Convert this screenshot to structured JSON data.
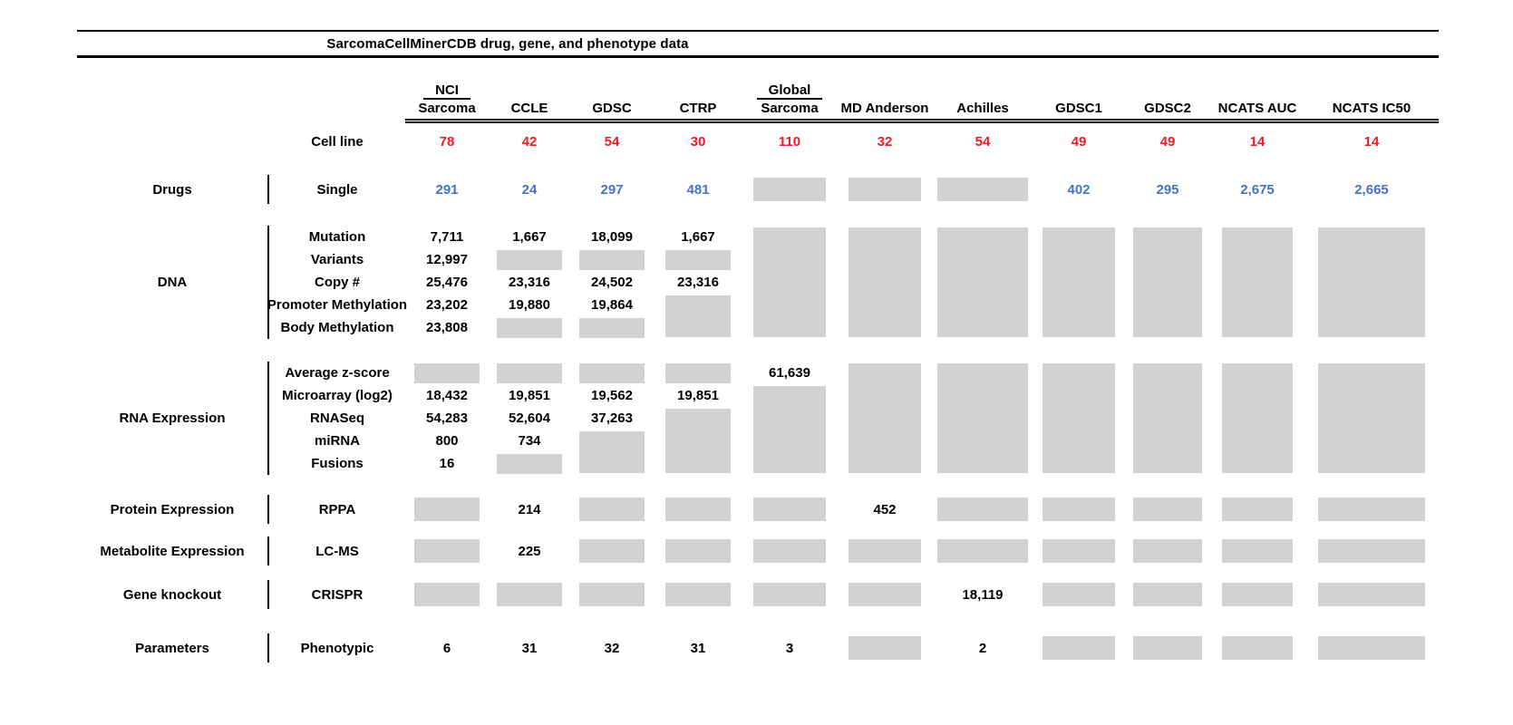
{
  "title": "SarcomaCellMinerCDB drug, gene, and phenotype data",
  "colors": {
    "red": "#ed1c24",
    "blue": "#4472c4",
    "box": "#d2d2d2"
  },
  "cell_line_label": "Cell line",
  "columns": [
    {
      "top": "NCI",
      "label": "Sarcoma",
      "count": "78"
    },
    {
      "label": "CCLE",
      "count": "42"
    },
    {
      "label": "GDSC",
      "count": "54"
    },
    {
      "label": "CTRP",
      "count": "30"
    },
    {
      "top": "Global",
      "label": "Sarcoma",
      "count": "110"
    },
    {
      "label": "MD Anderson",
      "count": "32"
    },
    {
      "label": "Achilles",
      "count": "54"
    },
    {
      "label": "GDSC1",
      "count": "49"
    },
    {
      "label": "GDSC2",
      "count": "49"
    },
    {
      "label": "NCATS AUC",
      "count": "14"
    },
    {
      "label": "NCATS IC50",
      "count": "14"
    }
  ],
  "cell_legend": {
    "g": "gray box = data not available (single row)",
    "gN": "gray box spanning N rows",
    "^": "covered by gray span above"
  },
  "sections": [
    {
      "category": "Drugs",
      "rows": [
        {
          "label": "Single",
          "color": "blue",
          "cells": [
            "291",
            "24",
            "297",
            "481",
            "g",
            "g",
            "g",
            "402",
            "295",
            "2,675",
            "2,665"
          ]
        }
      ]
    },
    {
      "category": "DNA",
      "rows": [
        {
          "label": "Mutation",
          "cells": [
            "7,711",
            "1,667",
            "18,099",
            "1,667",
            "g5",
            "g5",
            "g5",
            "g5",
            "g5",
            "g5",
            "g5"
          ]
        },
        {
          "label": "Variants",
          "cells": [
            "12,997",
            "g",
            "g",
            "g",
            "^",
            "^",
            "^",
            "^",
            "^",
            "^",
            "^"
          ]
        },
        {
          "label": "Copy #",
          "cells": [
            "25,476",
            "23,316",
            "24,502",
            "23,316",
            "^",
            "^",
            "^",
            "^",
            "^",
            "^",
            "^"
          ]
        },
        {
          "label": "Promoter Methylation",
          "cells": [
            "23,202",
            "19,880",
            "19,864",
            "g2",
            "^",
            "^",
            "^",
            "^",
            "^",
            "^",
            "^"
          ]
        },
        {
          "label": "Body Methylation",
          "cells": [
            "23,808",
            "g",
            "g",
            "^",
            "^",
            "^",
            "^",
            "^",
            "^",
            "^",
            "^"
          ]
        }
      ]
    },
    {
      "category": "RNA Expression",
      "rows": [
        {
          "label": "Average z-score",
          "cells": [
            "g",
            "g",
            "g",
            "g",
            "61,639",
            "g5",
            "g5",
            "g5",
            "g5",
            "g5",
            "g5"
          ]
        },
        {
          "label": "Microarray (log2)",
          "cells": [
            "18,432",
            "19,851",
            "19,562",
            "19,851",
            "g4",
            "^",
            "^",
            "^",
            "^",
            "^",
            "^"
          ]
        },
        {
          "label": "RNASeq",
          "cells": [
            "54,283",
            "52,604",
            "37,263",
            "g3",
            "^",
            "^",
            "^",
            "^",
            "^",
            "^",
            "^"
          ]
        },
        {
          "label": "miRNA",
          "cells": [
            "800",
            "734",
            "g2",
            "^",
            "^",
            "^",
            "^",
            "^",
            "^",
            "^",
            "^"
          ]
        },
        {
          "label": "Fusions",
          "cells": [
            "16",
            "g",
            "^",
            "^",
            "^",
            "^",
            "^",
            "^",
            "^",
            "^",
            "^"
          ]
        }
      ]
    },
    {
      "category": "Protein Expression",
      "rows": [
        {
          "label": "RPPA",
          "cells": [
            "g",
            "214",
            "g",
            "g",
            "g",
            "452",
            "g",
            "g",
            "g",
            "g",
            "g"
          ]
        }
      ]
    },
    {
      "category": "Metabolite Expression",
      "rows": [
        {
          "label": "LC-MS",
          "cells": [
            "g",
            "225",
            "g",
            "g",
            "g",
            "g",
            "g",
            "g",
            "g",
            "g",
            "g"
          ]
        }
      ]
    },
    {
      "category": "Gene knockout",
      "rows": [
        {
          "label": "CRISPR",
          "cells": [
            "g",
            "g",
            "g",
            "g",
            "g",
            "g",
            "18,119",
            "g",
            "g",
            "g",
            "g"
          ]
        }
      ]
    },
    {
      "category": "Parameters",
      "rows": [
        {
          "label": "Phenotypic",
          "cells": [
            "6",
            "31",
            "32",
            "31",
            "3",
            "g",
            "2",
            "g",
            "g",
            "g",
            "g"
          ]
        }
      ]
    }
  ]
}
